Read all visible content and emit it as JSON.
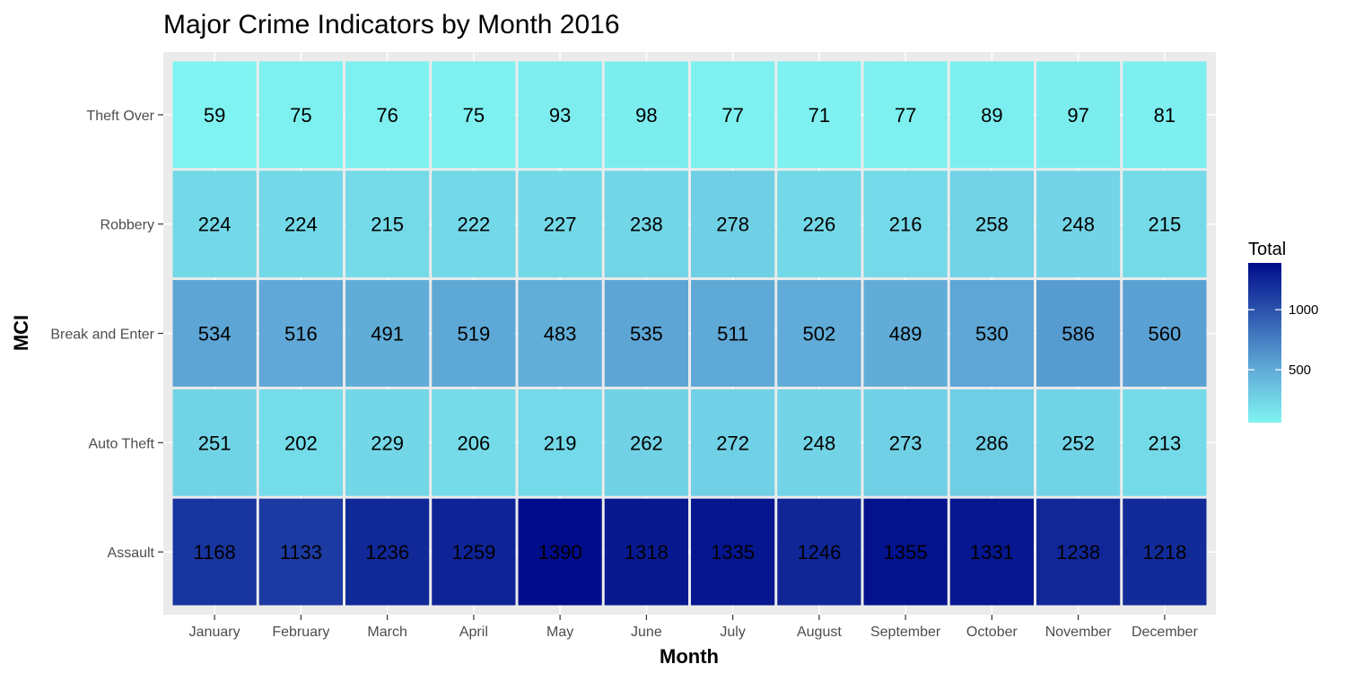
{
  "chart_data": {
    "type": "heatmap",
    "title": "Major Crime Indicators by Month 2016",
    "xlabel": "Month",
    "ylabel": "MCI",
    "x_categories": [
      "January",
      "February",
      "March",
      "April",
      "May",
      "June",
      "July",
      "August",
      "September",
      "October",
      "November",
      "December"
    ],
    "y_categories": [
      "Theft Over",
      "Robbery",
      "Break and Enter",
      "Auto Theft",
      "Assault"
    ],
    "values": [
      [
        59,
        75,
        76,
        75,
        93,
        98,
        77,
        71,
        77,
        89,
        97,
        81
      ],
      [
        224,
        224,
        215,
        222,
        227,
        238,
        278,
        226,
        216,
        258,
        248,
        215
      ],
      [
        534,
        516,
        491,
        519,
        483,
        535,
        511,
        502,
        489,
        530,
        586,
        560
      ],
      [
        251,
        202,
        229,
        206,
        219,
        262,
        272,
        248,
        273,
        286,
        252,
        213
      ],
      [
        1168,
        1133,
        1236,
        1259,
        1390,
        1318,
        1335,
        1246,
        1355,
        1331,
        1238,
        1218
      ]
    ],
    "legend": {
      "title": "Total",
      "ticks": [
        500,
        1000
      ],
      "min": 59,
      "max": 1390,
      "low_color": "#7ff3f1",
      "high_color": "#000c8a"
    },
    "grid": true
  }
}
